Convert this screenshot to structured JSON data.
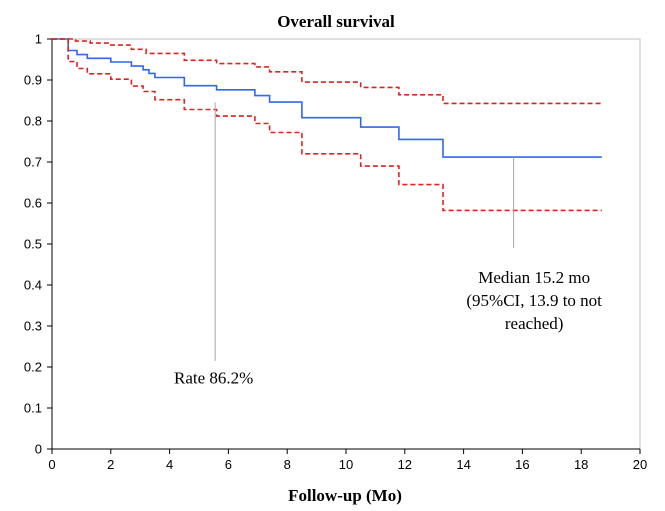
{
  "chart_data": {
    "type": "line",
    "title": "Overall survival",
    "xlabel": "Follow-up (Mo)",
    "ylabel": "",
    "xlim": [
      0,
      20
    ],
    "ylim": [
      0,
      1
    ],
    "x_ticks": [
      "0",
      "2",
      "4",
      "6",
      "8",
      "10",
      "12",
      "14",
      "16",
      "18",
      "20"
    ],
    "y_ticks": [
      "0",
      "0.1",
      "0.2",
      "0.3",
      "0.4",
      "0.5",
      "0.6",
      "0.7",
      "0.8",
      "0.9",
      "1"
    ],
    "grid": false,
    "series": [
      {
        "color": "#3366ee",
        "style": "solid",
        "points": [
          [
            0,
            1
          ],
          [
            0.55,
            1
          ],
          [
            0.55,
            0.972
          ],
          [
            0.85,
            0.972
          ],
          [
            0.85,
            0.962
          ],
          [
            1.2,
            0.962
          ],
          [
            1.2,
            0.953
          ],
          [
            2.0,
            0.953
          ],
          [
            2.0,
            0.944
          ],
          [
            2.7,
            0.944
          ],
          [
            2.7,
            0.934
          ],
          [
            3.1,
            0.934
          ],
          [
            3.1,
            0.925
          ],
          [
            3.3,
            0.925
          ],
          [
            3.3,
            0.916
          ],
          [
            3.5,
            0.916
          ],
          [
            3.5,
            0.906
          ],
          [
            4.5,
            0.906
          ],
          [
            4.5,
            0.886
          ],
          [
            5.6,
            0.886
          ],
          [
            5.6,
            0.876
          ],
          [
            6.9,
            0.876
          ],
          [
            6.9,
            0.862
          ],
          [
            7.4,
            0.862
          ],
          [
            7.4,
            0.846
          ],
          [
            8.5,
            0.846
          ],
          [
            8.5,
            0.808
          ],
          [
            10.5,
            0.808
          ],
          [
            10.5,
            0.785
          ],
          [
            11.8,
            0.785
          ],
          [
            11.8,
            0.755
          ],
          [
            13.3,
            0.755
          ],
          [
            13.3,
            0.712
          ],
          [
            18.7,
            0.712
          ]
        ]
      },
      {
        "color": "#dd2222",
        "style": "dashed",
        "points": [
          [
            0,
            1
          ],
          [
            0.8,
            1
          ],
          [
            0.8,
            0.995
          ],
          [
            1.3,
            0.995
          ],
          [
            1.3,
            0.99
          ],
          [
            2.0,
            0.99
          ],
          [
            2.0,
            0.985
          ],
          [
            2.7,
            0.985
          ],
          [
            2.7,
            0.975
          ],
          [
            3.2,
            0.975
          ],
          [
            3.2,
            0.965
          ],
          [
            4.5,
            0.965
          ],
          [
            4.5,
            0.948
          ],
          [
            5.6,
            0.948
          ],
          [
            5.6,
            0.94
          ],
          [
            6.9,
            0.94
          ],
          [
            6.9,
            0.932
          ],
          [
            7.4,
            0.932
          ],
          [
            7.4,
            0.92
          ],
          [
            8.5,
            0.92
          ],
          [
            8.5,
            0.895
          ],
          [
            10.5,
            0.895
          ],
          [
            10.5,
            0.882
          ],
          [
            11.8,
            0.882
          ],
          [
            11.8,
            0.864
          ],
          [
            13.3,
            0.864
          ],
          [
            13.3,
            0.843
          ],
          [
            18.7,
            0.843
          ]
        ]
      },
      {
        "color": "#dd2222",
        "style": "dashed",
        "points": [
          [
            0,
            1
          ],
          [
            0.55,
            1
          ],
          [
            0.55,
            0.945
          ],
          [
            0.85,
            0.945
          ],
          [
            0.85,
            0.928
          ],
          [
            1.2,
            0.928
          ],
          [
            1.2,
            0.915
          ],
          [
            2.0,
            0.915
          ],
          [
            2.0,
            0.902
          ],
          [
            2.7,
            0.902
          ],
          [
            2.7,
            0.885
          ],
          [
            3.1,
            0.885
          ],
          [
            3.1,
            0.872
          ],
          [
            3.5,
            0.872
          ],
          [
            3.5,
            0.852
          ],
          [
            4.5,
            0.852
          ],
          [
            4.5,
            0.828
          ],
          [
            5.6,
            0.828
          ],
          [
            5.6,
            0.812
          ],
          [
            6.9,
            0.812
          ],
          [
            6.9,
            0.794
          ],
          [
            7.4,
            0.794
          ],
          [
            7.4,
            0.772
          ],
          [
            8.5,
            0.772
          ],
          [
            8.5,
            0.72
          ],
          [
            10.5,
            0.72
          ],
          [
            10.5,
            0.69
          ],
          [
            11.8,
            0.69
          ],
          [
            11.8,
            0.645
          ],
          [
            13.3,
            0.645
          ],
          [
            13.3,
            0.582
          ],
          [
            18.7,
            0.582
          ]
        ]
      }
    ],
    "annotations": [
      {
        "lines": [
          "Rate 86.2%"
        ],
        "anchor": [
          5.55,
          0.845
        ],
        "tip": [
          5.55,
          0.215
        ],
        "text_pos": [
          5.5,
          0.16
        ]
      },
      {
        "lines": [
          "Median 15.2 mo",
          "(95%CI, 13.9 to not",
          "reached)"
        ],
        "anchor": [
          15.7,
          0.712
        ],
        "tip": [
          15.7,
          0.49
        ],
        "text_pos": [
          16.4,
          0.405
        ]
      }
    ]
  }
}
